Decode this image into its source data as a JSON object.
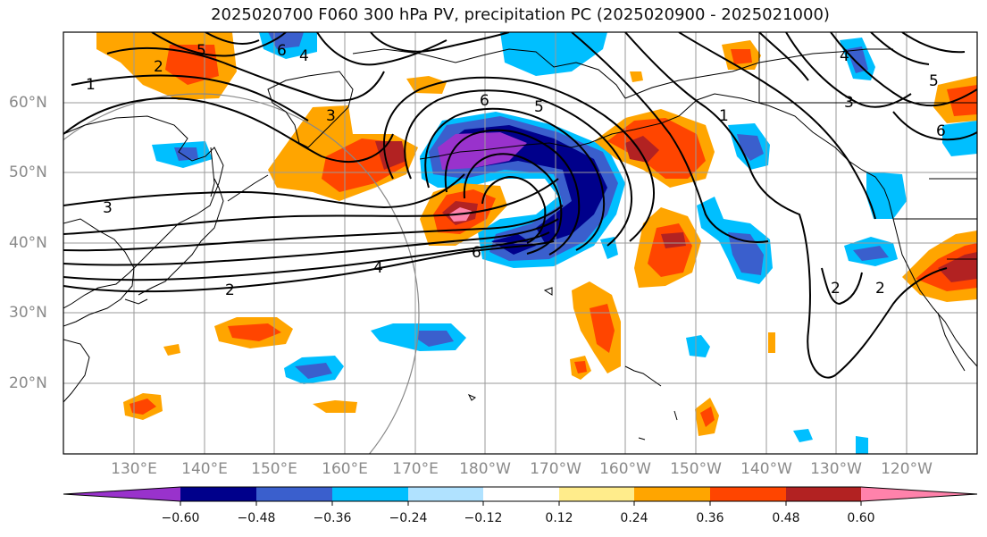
{
  "title": "2025020700 F060 300 hPa PV, precipitation PC (2025020900 - 2025021000)",
  "lat_labels": [
    "60°N",
    "50°N",
    "40°N",
    "30°N",
    "20°N"
  ],
  "lon_labels": [
    "130°E",
    "140°E",
    "150°E",
    "160°E",
    "170°E",
    "180°W",
    "170°W",
    "160°W",
    "150°W",
    "140°W",
    "130°W",
    "120°W"
  ],
  "contour_labels": [
    "1",
    "2",
    "3",
    "4",
    "5",
    "6",
    "6",
    "5",
    "4",
    "6",
    "2",
    "1",
    "2",
    "3",
    "4",
    "5",
    "6",
    "3",
    "2"
  ],
  "colorbar": {
    "ticks": [
      "−0.60",
      "−0.48",
      "−0.36",
      "−0.24",
      "−0.12",
      "0.12",
      "0.24",
      "0.36",
      "0.48",
      "0.60"
    ],
    "colors": [
      "#9932cc",
      "#00008b",
      "#3a5fcd",
      "#00bfff",
      "#b0e2ff",
      "#ffffff",
      "#ffec8b",
      "#ffa500",
      "#ff4500",
      "#b22222",
      "#ff82ab"
    ]
  },
  "colors": {
    "contour": "#000000",
    "grid": "#9a9a9a",
    "coast": "#000000",
    "circle": "#888888"
  }
}
